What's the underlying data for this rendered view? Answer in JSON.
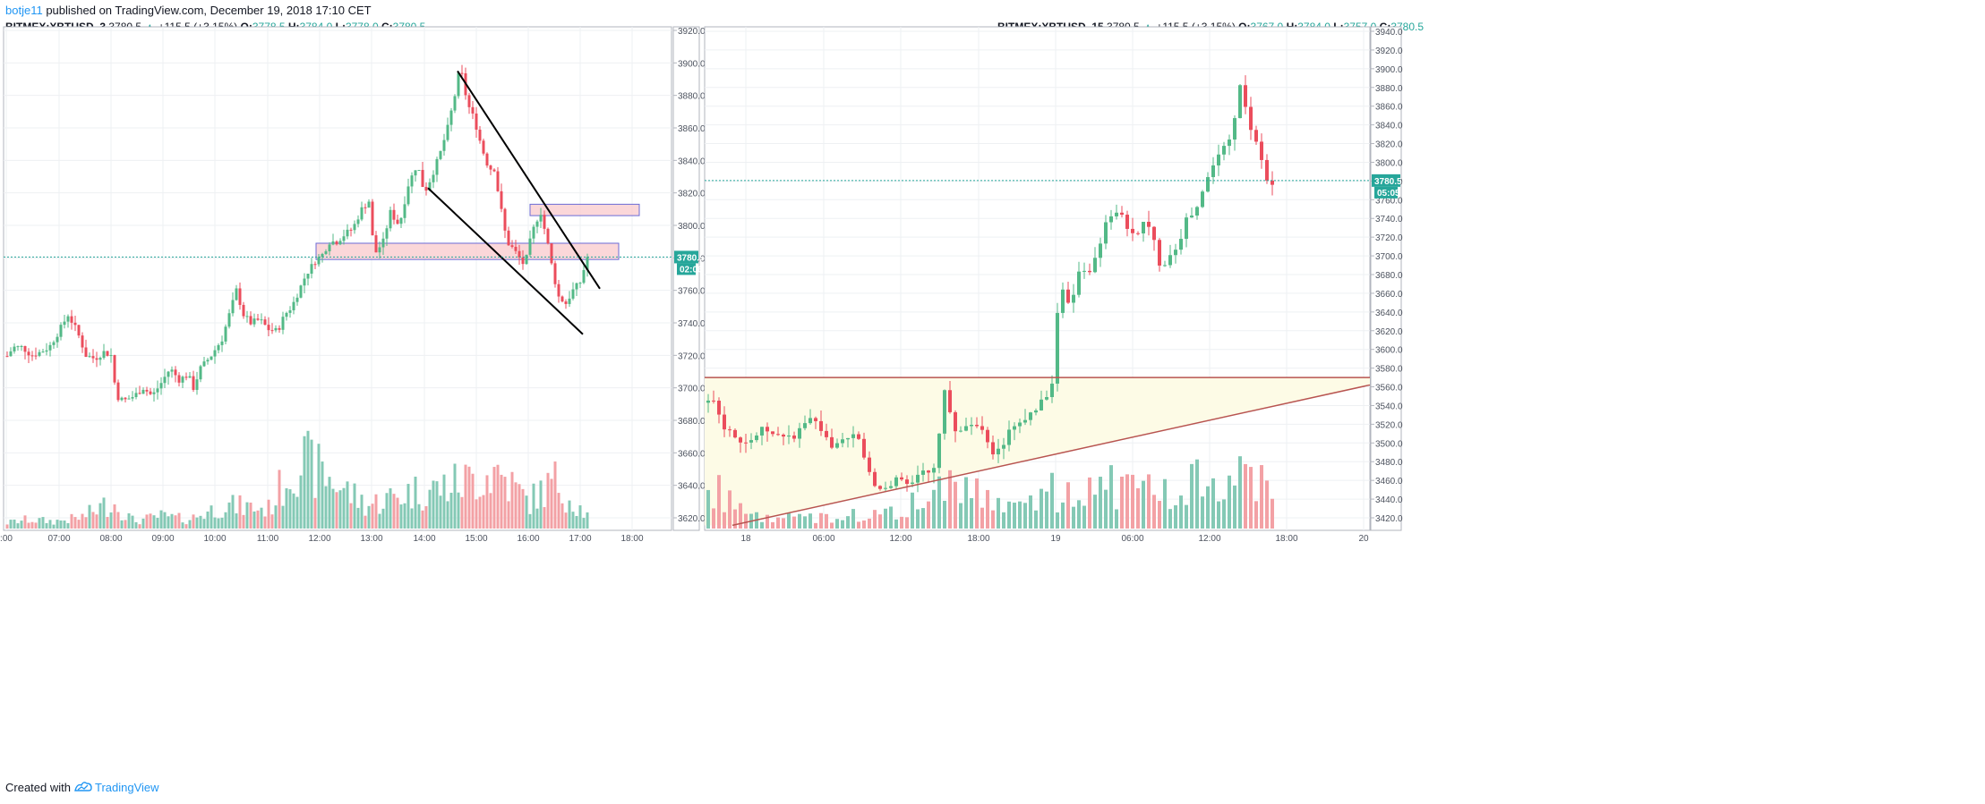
{
  "publication": {
    "author": "botje11",
    "text": "published on TradingView.com, December 19, 2018 17:10 CET"
  },
  "footer": {
    "created_with": "Created with",
    "brand": "TradingView"
  },
  "chart_data": [
    {
      "type": "candlestick",
      "symbol": "BITMEX:XBTUSD, 3",
      "last": "3780.5",
      "change": "+115.5 (+3.15%)",
      "ohlc": {
        "O": "3778.5",
        "H": "3784.0",
        "L": "3778.0",
        "C": "3780.5"
      },
      "price_tag": "3780.5",
      "countdown": "02:06",
      "ylim": [
        3612,
        3922
      ],
      "y_ticks": [
        "3920.0",
        "3900.0",
        "3880.0",
        "3860.0",
        "3840.0",
        "3820.0",
        "3800.0",
        "3780.0",
        "3760.0",
        "3740.0",
        "3720.0",
        "3700.0",
        "3680.0",
        "3660.0",
        "3640.0",
        "3620.0"
      ],
      "x_ticks": [
        ":00",
        "07:00",
        "08:00",
        "09:00",
        "10:00",
        "11:00",
        "12:00",
        "13:00",
        "14:00",
        "15:00",
        "16:00",
        "17:00",
        "18:00"
      ],
      "grid": true,
      "price_path": [
        [
          6,
          3718
        ],
        [
          15,
          3725
        ],
        [
          25,
          3725
        ],
        [
          35,
          3720
        ],
        [
          45,
          3722
        ],
        [
          55,
          3725
        ],
        [
          66,
          3735
        ],
        [
          76,
          3745
        ],
        [
          86,
          3735
        ],
        [
          96,
          3720
        ],
        [
          106,
          3718
        ],
        [
          116,
          3722
        ],
        [
          124,
          3720
        ],
        [
          130,
          3695
        ],
        [
          138,
          3692
        ],
        [
          150,
          3695
        ],
        [
          160,
          3700
        ],
        [
          170,
          3695
        ],
        [
          180,
          3703
        ],
        [
          190,
          3712
        ],
        [
          200,
          3705
        ],
        [
          210,
          3708
        ],
        [
          216,
          3700
        ],
        [
          224,
          3712
        ],
        [
          236,
          3720
        ],
        [
          248,
          3730
        ],
        [
          256,
          3745
        ],
        [
          264,
          3760
        ],
        [
          272,
          3745
        ],
        [
          280,
          3740
        ],
        [
          290,
          3742
        ],
        [
          300,
          3736
        ],
        [
          310,
          3735
        ],
        [
          318,
          3745
        ],
        [
          326,
          3750
        ],
        [
          334,
          3760
        ],
        [
          342,
          3770
        ],
        [
          352,
          3778
        ],
        [
          360,
          3782
        ],
        [
          368,
          3790
        ],
        [
          376,
          3790
        ],
        [
          386,
          3795
        ],
        [
          394,
          3798
        ],
        [
          404,
          3810
        ],
        [
          412,
          3815
        ],
        [
          418,
          3782
        ],
        [
          428,
          3790
        ],
        [
          436,
          3808
        ],
        [
          446,
          3800
        ],
        [
          456,
          3825
        ],
        [
          466,
          3838
        ],
        [
          474,
          3820
        ],
        [
          482,
          3830
        ],
        [
          492,
          3845
        ],
        [
          500,
          3860
        ],
        [
          508,
          3880
        ],
        [
          514,
          3898
        ],
        [
          522,
          3875
        ],
        [
          530,
          3865
        ],
        [
          538,
          3848
        ],
        [
          546,
          3835
        ],
        [
          552,
          3835
        ],
        [
          558,
          3815
        ],
        [
          566,
          3790
        ],
        [
          574,
          3785
        ],
        [
          580,
          3780
        ],
        [
          586,
          3775
        ],
        [
          592,
          3790
        ],
        [
          598,
          3802
        ],
        [
          604,
          3808
        ],
        [
          612,
          3788
        ],
        [
          618,
          3770
        ],
        [
          624,
          3756
        ],
        [
          632,
          3752
        ],
        [
          640,
          3760
        ],
        [
          648,
          3765
        ],
        [
          656,
          3780.5
        ]
      ],
      "volume_path": [
        [
          6,
          6
        ],
        [
          30,
          10
        ],
        [
          60,
          8
        ],
        [
          90,
          12
        ],
        [
          125,
          30
        ],
        [
          150,
          8
        ],
        [
          180,
          14
        ],
        [
          210,
          10
        ],
        [
          250,
          26
        ],
        [
          300,
          22
        ],
        [
          332,
          78
        ],
        [
          365,
          58
        ],
        [
          410,
          26
        ],
        [
          455,
          40
        ],
        [
          490,
          45
        ],
        [
          510,
          50
        ],
        [
          556,
          64
        ],
        [
          590,
          30
        ],
        [
          620,
          52
        ],
        [
          656,
          14
        ]
      ],
      "annotations": [
        {
          "kind": "trendline",
          "from": [
            511,
            3895
          ],
          "to": [
            670,
            3761
          ]
        },
        {
          "kind": "trendline",
          "from": [
            478,
            3823
          ],
          "to": [
            651,
            3733
          ]
        },
        {
          "kind": "zone",
          "x0": 353,
          "x1": 691,
          "y0": 3779,
          "y1": 3789
        },
        {
          "kind": "zone",
          "x0": 592,
          "x1": 714,
          "y0": 3806,
          "y1": 3813
        }
      ]
    },
    {
      "type": "candlestick",
      "symbol": "BITMEX:XBTUSD, 15",
      "last": "3780.5",
      "change": "+115.5 (+3.15%)",
      "ohlc": {
        "O": "3767.0",
        "H": "3784.0",
        "L": "3757.0",
        "C": "3780.5"
      },
      "price_tag": "3780.5",
      "countdown": "05:05",
      "ylim": [
        3410,
        3944
      ],
      "y_ticks": [
        "3940.0",
        "3920.0",
        "3900.0",
        "3880.0",
        "3860.0",
        "3840.0",
        "3820.0",
        "3800.0",
        "3780.0",
        "3760.0",
        "3740.0",
        "3720.0",
        "3700.0",
        "3680.0",
        "3660.0",
        "3640.0",
        "3620.0",
        "3600.0",
        "3580.0",
        "3560.0",
        "3540.0",
        "3520.0",
        "3500.0",
        "3480.0",
        "3460.0",
        "3440.0",
        "3420.0"
      ],
      "x_ticks": [
        "18",
        "06:00",
        "12:00",
        "18:00",
        "19",
        "06:00",
        "12:00",
        "18:00",
        "20"
      ],
      "grid": true,
      "price_path": [
        [
          788,
          3540
        ],
        [
          798,
          3550
        ],
        [
          806,
          3520
        ],
        [
          816,
          3515
        ],
        [
          826,
          3505
        ],
        [
          836,
          3500
        ],
        [
          846,
          3510
        ],
        [
          856,
          3515
        ],
        [
          866,
          3505
        ],
        [
          876,
          3510
        ],
        [
          886,
          3505
        ],
        [
          896,
          3515
        ],
        [
          906,
          3528
        ],
        [
          916,
          3510
        ],
        [
          926,
          3500
        ],
        [
          936,
          3498
        ],
        [
          946,
          3500
        ],
        [
          956,
          3510
        ],
        [
          966,
          3485
        ],
        [
          974,
          3455
        ],
        [
          984,
          3450
        ],
        [
          994,
          3455
        ],
        [
          1004,
          3465
        ],
        [
          1014,
          3455
        ],
        [
          1024,
          3468
        ],
        [
          1034,
          3465
        ],
        [
          1044,
          3470
        ],
        [
          1054,
          3555
        ],
        [
          1064,
          3520
        ],
        [
          1074,
          3510
        ],
        [
          1084,
          3525
        ],
        [
          1094,
          3515
        ],
        [
          1104,
          3495
        ],
        [
          1114,
          3490
        ],
        [
          1124,
          3505
        ],
        [
          1134,
          3520
        ],
        [
          1144,
          3518
        ],
        [
          1154,
          3535
        ],
        [
          1164,
          3545
        ],
        [
          1174,
          3555
        ],
        [
          1180,
          3630
        ],
        [
          1186,
          3660
        ],
        [
          1196,
          3650
        ],
        [
          1206,
          3690
        ],
        [
          1216,
          3685
        ],
        [
          1226,
          3700
        ],
        [
          1236,
          3740
        ],
        [
          1246,
          3750
        ],
        [
          1256,
          3735
        ],
        [
          1266,
          3720
        ],
        [
          1276,
          3735
        ],
        [
          1286,
          3725
        ],
        [
          1296,
          3690
        ],
        [
          1306,
          3700
        ],
        [
          1316,
          3715
        ],
        [
          1326,
          3740
        ],
        [
          1336,
          3748
        ],
        [
          1346,
          3775
        ],
        [
          1356,
          3800
        ],
        [
          1366,
          3815
        ],
        [
          1376,
          3835
        ],
        [
          1386,
          3885
        ],
        [
          1396,
          3840
        ],
        [
          1404,
          3815
        ],
        [
          1412,
          3795
        ],
        [
          1418,
          3768
        ],
        [
          1424,
          3780.5
        ]
      ],
      "volume_path": [
        [
          788,
          40
        ],
        [
          800,
          46
        ],
        [
          820,
          22
        ],
        [
          840,
          16
        ],
        [
          870,
          12
        ],
        [
          900,
          14
        ],
        [
          940,
          12
        ],
        [
          970,
          18
        ],
        [
          1000,
          20
        ],
        [
          1030,
          36
        ],
        [
          1058,
          46
        ],
        [
          1090,
          38
        ],
        [
          1120,
          40
        ],
        [
          1150,
          42
        ],
        [
          1180,
          40
        ],
        [
          1200,
          38
        ],
        [
          1230,
          50
        ],
        [
          1260,
          42
        ],
        [
          1300,
          38
        ],
        [
          1340,
          52
        ],
        [
          1360,
          62
        ],
        [
          1386,
          64
        ],
        [
          1410,
          60
        ],
        [
          1424,
          20
        ]
      ],
      "annotations": [
        {
          "kind": "resistance",
          "from": [
            787,
            3570
          ],
          "to": [
            1530,
            3570
          ]
        },
        {
          "kind": "support",
          "from": [
            818,
            3412
          ],
          "to": [
            1530,
            3562
          ]
        },
        {
          "kind": "triangle",
          "points": [
            [
              787,
              3570
            ],
            [
              1530,
              3570
            ],
            [
              1530,
              3562
            ],
            [
              818,
              3412
            ],
            [
              787,
              3412
            ]
          ]
        }
      ]
    }
  ],
  "colors": {
    "up": "#53b987",
    "down": "#eb4d5c",
    "vol_up": "#84c9b5",
    "vol_down": "#f3a1a5",
    "grid": "#eef0f3",
    "axis_text": "#4c525e",
    "price_line": "#26a69a",
    "zone_fill": "#f9c9cc",
    "zone_stroke": "#6b6bd6",
    "triangle_fill": "#fdfbe6",
    "triangle_line": "#b85450",
    "link": "#2196f3"
  }
}
